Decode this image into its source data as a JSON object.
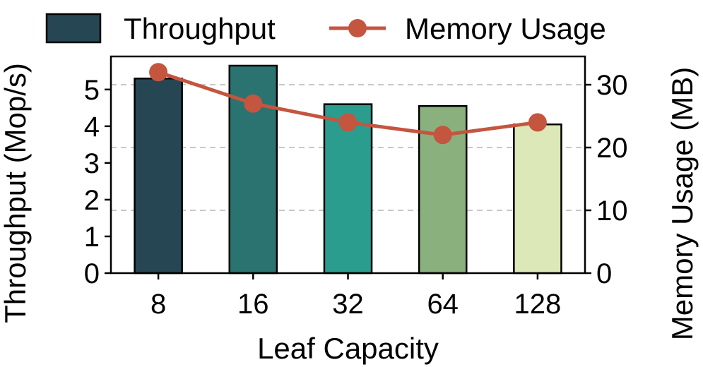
{
  "chart_data": {
    "type": "bar",
    "xlabel": "Leaf Capacity",
    "ylabel": "Throughput (Mop/s)",
    "y2label": "Memory Usage (MB)",
    "categories": [
      "8",
      "16",
      "32",
      "64",
      "128"
    ],
    "ylim": [
      0,
      5.9
    ],
    "yticks": [
      "0",
      "1",
      "2",
      "3",
      "4",
      "5"
    ],
    "y2lim": [
      0,
      34.5
    ],
    "y2ticks": [
      "0",
      "10",
      "20",
      "30"
    ],
    "grid": "horizontal-dashed-right-axis",
    "legend_position": "top",
    "series": [
      {
        "name": "Throughput",
        "type": "bar",
        "axis": "left",
        "values": [
          5.3,
          5.65,
          4.6,
          4.55,
          4.05
        ],
        "colors": [
          "#264653",
          "#2a7370",
          "#2a9d8f",
          "#8ab17d",
          "#dde8b9"
        ]
      },
      {
        "name": "Memory Usage",
        "type": "line",
        "axis": "right",
        "values": [
          32,
          27,
          24,
          22,
          24
        ],
        "color": "#c4553f"
      }
    ]
  }
}
